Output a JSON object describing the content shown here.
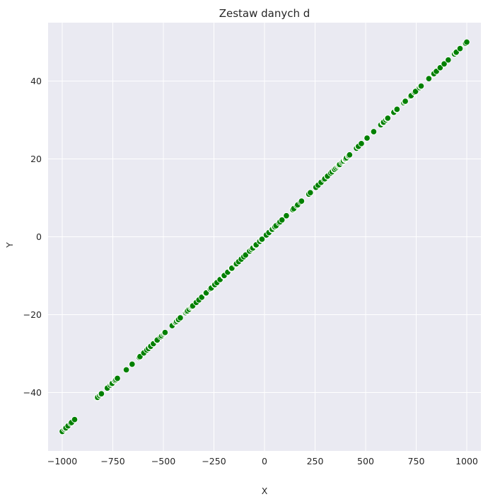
{
  "chart_data": {
    "type": "scatter",
    "title": "Zestaw danych d",
    "xlabel": "X",
    "ylabel": "Y",
    "xlim": [
      -1070,
      1070
    ],
    "ylim": [
      -55,
      55
    ],
    "xticks": [
      -1000,
      -750,
      -500,
      -250,
      0,
      250,
      500,
      750,
      1000
    ],
    "xtick_labels": [
      "−1000",
      "−750",
      "−500",
      "−250",
      "0",
      "250",
      "500",
      "750",
      "1000"
    ],
    "yticks": [
      -40,
      -20,
      0,
      20,
      40
    ],
    "ytick_labels": [
      "−40",
      "−20",
      "0",
      "20",
      "40"
    ],
    "grid": true,
    "marker_color": "#008000",
    "marker_edge_color": "#ffffff",
    "background_color": "#eaeaf2",
    "grid_color": "#ffffff",
    "series": [
      {
        "x_range": [
          -1000,
          1000
        ],
        "relation": "y = 0.05 * x",
        "point_count": 200
      }
    ]
  }
}
